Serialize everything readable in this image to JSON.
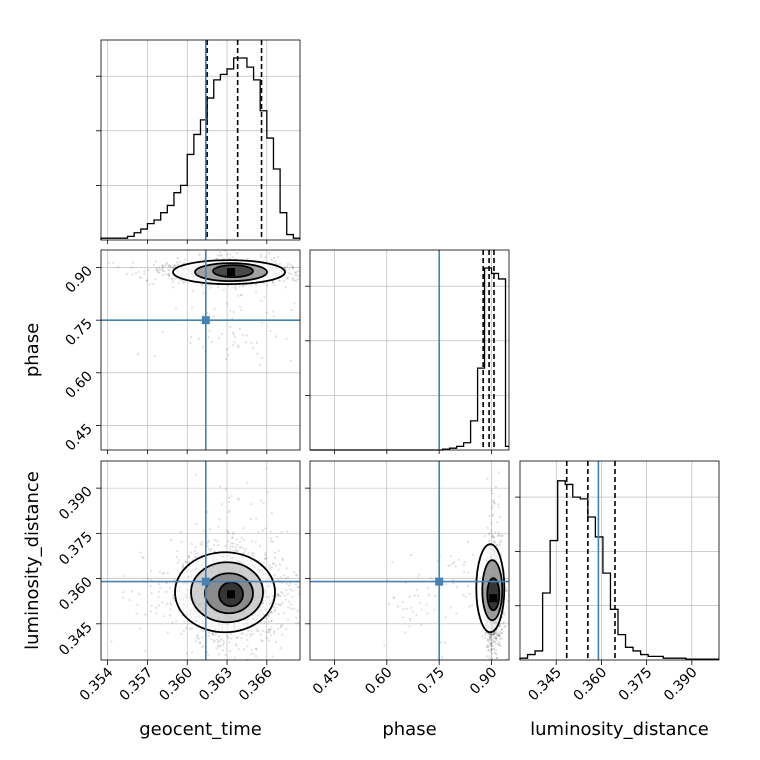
{
  "chart_data": {
    "type": "corner",
    "parameters": [
      {
        "name": "geocent_time",
        "label": "geocent_time",
        "range": [
          0.3535,
          0.3685
        ],
        "ticks": [
          "0.354",
          "0.357",
          "0.360",
          "0.363",
          "0.366"
        ],
        "tick_values": [
          0.354,
          0.357,
          0.36,
          0.363,
          0.366
        ],
        "truth": 0.3614,
        "quantiles": [
          0.3615,
          0.3638,
          0.3656
        ]
      },
      {
        "name": "phase",
        "label": "phase",
        "range": [
          0.38,
          0.95
        ],
        "ticks": [
          "0.45",
          "0.60",
          "0.75",
          "0.90"
        ],
        "tick_values": [
          0.45,
          0.6,
          0.75,
          0.9
        ],
        "truth": 0.75,
        "quantiles": [
          0.876,
          0.893,
          0.907
        ]
      },
      {
        "name": "luminosity_distance",
        "label": "luminosity_distance",
        "range": [
          0.333,
          0.399
        ],
        "ticks": [
          "0.345",
          "0.360",
          "0.375",
          "0.390"
        ],
        "tick_values": [
          0.345,
          0.36,
          0.375,
          0.39
        ],
        "truth": 0.359,
        "quantiles": [
          0.3485,
          0.3555,
          0.3645
        ]
      }
    ],
    "histograms": {
      "geocent_time": {
        "bins": [
          0.3535,
          0.354,
          0.3545,
          0.355,
          0.3555,
          0.356,
          0.3565,
          0.357,
          0.3575,
          0.358,
          0.3585,
          0.359,
          0.3595,
          0.36,
          0.3605,
          0.361,
          0.3615,
          0.362,
          0.3625,
          0.363,
          0.3635,
          0.364,
          0.3645,
          0.365,
          0.3655,
          0.366,
          0.3665,
          0.367,
          0.3675,
          0.368,
          0.3685
        ],
        "counts": [
          0.01,
          0.01,
          0.01,
          0.01,
          0.02,
          0.04,
          0.06,
          0.09,
          0.11,
          0.15,
          0.19,
          0.26,
          0.3,
          0.47,
          0.58,
          0.66,
          0.78,
          0.88,
          0.91,
          0.94,
          1.0,
          1.0,
          0.95,
          0.88,
          0.71,
          0.56,
          0.39,
          0.15,
          0.03,
          0.01
        ]
      },
      "phase": {
        "bins": [
          0.38,
          0.4,
          0.42,
          0.44,
          0.46,
          0.48,
          0.5,
          0.52,
          0.54,
          0.56,
          0.58,
          0.6,
          0.62,
          0.64,
          0.66,
          0.68,
          0.7,
          0.72,
          0.74,
          0.76,
          0.78,
          0.8,
          0.82,
          0.84,
          0.86,
          0.88,
          0.9,
          0.92,
          0.94,
          0.95
        ],
        "counts": [
          0,
          0,
          0,
          0,
          0,
          0,
          0,
          0,
          0,
          0,
          0,
          0,
          0,
          0,
          0,
          0,
          0,
          0,
          0,
          0.005,
          0.01,
          0.02,
          0.04,
          0.16,
          0.45,
          1.0,
          0.97,
          0.94,
          0.02
        ]
      },
      "luminosity_distance": {
        "bins": [
          0.333,
          0.3355,
          0.338,
          0.3405,
          0.343,
          0.3455,
          0.348,
          0.3505,
          0.353,
          0.3555,
          0.358,
          0.3605,
          0.363,
          0.3655,
          0.368,
          0.3705,
          0.373,
          0.3755,
          0.378,
          0.3805,
          0.383,
          0.3855,
          0.388,
          0.3905,
          0.393,
          0.3955,
          0.399
        ],
        "counts": [
          0.01,
          0.03,
          0.05,
          0.37,
          0.66,
          0.99,
          0.97,
          0.9,
          0.89,
          0.79,
          0.68,
          0.48,
          0.28,
          0.14,
          0.07,
          0.05,
          0.03,
          0.02,
          0.02,
          0.01,
          0.01,
          0.01,
          0.005,
          0.005,
          0.005,
          0.005
        ]
      }
    },
    "joint_modes": {
      "phase_vs_geocent_time": {
        "x": 0.3633,
        "y": 0.887
      },
      "luminosity_distance_vs_geocent_time": {
        "x": 0.3633,
        "y": 0.3548
      },
      "luminosity_distance_vs_phase": {
        "x": 0.905,
        "y": 0.3535
      }
    },
    "truth_color": "#4682b4",
    "grid": true,
    "quantile_style": "dashed"
  }
}
